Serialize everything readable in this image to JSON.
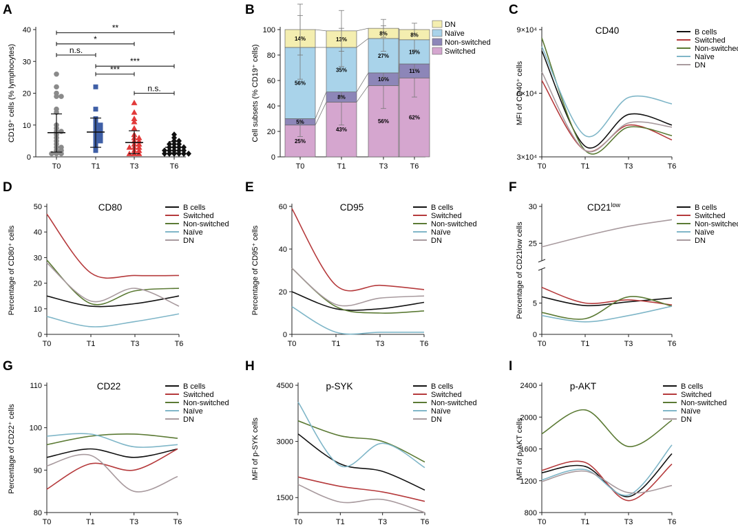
{
  "colors": {
    "B cells": "#111111",
    "Switched": "#b5393b",
    "Non-switched": "#5b7a34",
    "Naïve": "#7fb6c8",
    "DN": "#a89a9e",
    "T0": "#8a8a8a",
    "T1": "#3f5fa6",
    "T3": "#e23a3a",
    "T6": "#111111",
    "DN_bar": "#f4eeb0",
    "Naive_bar": "#a9d3ea",
    "NonSw_bar": "#8d86b8",
    "Sw_bar": "#d5a6cf"
  },
  "panels": [
    {
      "id": "A",
      "label": "A",
      "ylabel": "CD19⁺ cells (% lymphocytes)"
    },
    {
      "id": "B",
      "label": "B",
      "ylabel": "Cell subsets (% CD19⁺ cells)"
    },
    {
      "id": "C",
      "label": "C",
      "ylabel": "MFI of CD40⁺ cells"
    },
    {
      "id": "D",
      "label": "D",
      "ylabel": "Percentage of CD80⁺ cells"
    },
    {
      "id": "E",
      "label": "E",
      "ylabel": "Percentage of CD95⁺ cells"
    },
    {
      "id": "F",
      "label": "F",
      "ylabel": "Percentage of CD21low cells"
    },
    {
      "id": "G",
      "label": "G",
      "ylabel": "Percentage of CD22⁺ cells"
    },
    {
      "id": "H",
      "label": "H",
      "ylabel": "MFI of p-SYK cells"
    },
    {
      "id": "I",
      "label": "I",
      "ylabel": "MFI of p-AKT cells"
    }
  ],
  "chart_data": [
    {
      "panel": "A",
      "type": "scatter",
      "categories": [
        "T0",
        "T1",
        "T3",
        "T6"
      ],
      "ylim": [
        0,
        40
      ],
      "yticks": [
        0,
        10,
        20,
        30,
        40
      ],
      "ylabel": "CD19⁺ cells (% lymphocytes)",
      "points": [
        [
          26,
          22,
          20,
          19,
          19,
          15,
          14,
          10,
          9,
          8,
          8,
          7,
          6,
          5,
          4,
          3,
          3,
          2,
          2,
          1,
          1,
          1
        ],
        [
          22,
          15,
          12,
          11,
          10,
          10,
          9,
          9,
          8,
          8,
          7,
          7,
          6,
          6,
          5,
          5,
          4,
          3,
          2
        ],
        [
          17,
          14,
          12,
          11,
          9,
          7,
          6,
          6,
          5,
          5,
          4,
          4,
          3,
          3,
          3,
          2,
          2,
          1,
          1,
          1
        ],
        [
          7,
          6,
          5,
          5,
          4,
          4,
          4,
          3,
          3,
          3,
          3,
          2,
          2,
          2,
          2,
          2,
          1,
          1,
          1,
          1,
          1,
          1
        ]
      ],
      "mean": [
        7.6,
        7.8,
        4.5,
        3.0
      ],
      "sd_hi": [
        13.5,
        12.2,
        8.2,
        4.8
      ],
      "sd_lo": [
        1.5,
        3.0,
        1.0,
        1.3
      ],
      "comparisons": [
        {
          "from": 0,
          "to": 3,
          "y": 39,
          "label": "**"
        },
        {
          "from": 0,
          "to": 2,
          "y": 35.5,
          "label": "*"
        },
        {
          "from": 0,
          "to": 1,
          "y": 32,
          "label": "n.s."
        },
        {
          "from": 1,
          "to": 3,
          "y": 28.5,
          "label": "***"
        },
        {
          "from": 1,
          "to": 2,
          "y": 26,
          "label": "***"
        },
        {
          "from": 2,
          "to": 3,
          "y": 20,
          "label": "n.s."
        }
      ]
    },
    {
      "panel": "B",
      "type": "bar",
      "stacked": true,
      "categories": [
        "T0",
        "T1",
        "T3",
        "T6"
      ],
      "ylim": [
        0,
        100
      ],
      "yticks": [
        0,
        20,
        40,
        60,
        80,
        100
      ],
      "ylabel": "Cell subsets (% CD19⁺ cells)",
      "series": [
        {
          "name": "Switched",
          "values": [
            25,
            43,
            56,
            62
          ],
          "labels": [
            "25%",
            "43%",
            "56%",
            "62%"
          ],
          "err": [
            9,
            18,
            18,
            15
          ]
        },
        {
          "name": "Non-switched",
          "values": [
            5,
            8,
            10,
            11
          ],
          "labels": [
            "5%",
            "8%",
            "10%",
            "11%"
          ],
          "err": [
            4,
            5,
            4,
            4
          ]
        },
        {
          "name": "Naïve",
          "values": [
            56,
            35,
            27,
            19
          ],
          "labels": [
            "56%",
            "35%",
            "27%",
            "19%"
          ],
          "err": [
            25,
            15,
            10,
            8
          ]
        },
        {
          "name": "DN",
          "values": [
            14,
            13,
            8,
            8
          ],
          "labels": [
            "14%",
            "13%",
            "8%",
            "8%"
          ],
          "err": [
            20,
            16,
            7,
            5
          ]
        }
      ],
      "legend": [
        "DN",
        "Naïve",
        "Non-switched",
        "Switched"
      ]
    },
    {
      "panel": "C",
      "type": "line",
      "title": "CD40",
      "x": [
        "T0",
        "T1",
        "T3",
        "T6"
      ],
      "ylim": [
        30000,
        90000
      ],
      "yticks": [
        {
          "v": 30000,
          "t": "3×10⁴"
        },
        {
          "v": 60000,
          "t": "6×10⁴"
        },
        {
          "v": 90000,
          "t": "9×10⁴"
        }
      ],
      "ylabel": "MFI of CD40⁺ cells",
      "series": [
        {
          "name": "B cells",
          "values": [
            80000,
            35000,
            50000,
            45000
          ]
        },
        {
          "name": "Switched",
          "values": [
            66000,
            33000,
            45000,
            38000
          ]
        },
        {
          "name": "Non-switched",
          "values": [
            86000,
            33000,
            44000,
            40000
          ]
        },
        {
          "name": "Naïve",
          "values": [
            82000,
            40000,
            58000,
            55000
          ]
        },
        {
          "name": "DN",
          "values": [
            70000,
            33000,
            46000,
            44000
          ]
        }
      ]
    },
    {
      "panel": "D",
      "type": "line",
      "title": "CD80",
      "x": [
        "T0",
        "T1",
        "T3",
        "T6"
      ],
      "ylim": [
        0,
        50
      ],
      "yticks": [
        0,
        10,
        20,
        30,
        40,
        50
      ],
      "ylabel": "Percentage of CD80⁺ cells",
      "series": [
        {
          "name": "B cells",
          "values": [
            15,
            11,
            12,
            15
          ]
        },
        {
          "name": "Switched",
          "values": [
            47,
            24,
            23,
            23
          ]
        },
        {
          "name": "Non-switched",
          "values": [
            29,
            12,
            17,
            18
          ]
        },
        {
          "name": "Naïve",
          "values": [
            7,
            3,
            5,
            8
          ]
        },
        {
          "name": "DN",
          "values": [
            28,
            13,
            18,
            11
          ]
        }
      ]
    },
    {
      "panel": "E",
      "type": "line",
      "title": "CD95",
      "x": [
        "T0",
        "T1",
        "T3",
        "T6"
      ],
      "ylim": [
        0,
        60
      ],
      "yticks": [
        0,
        20,
        40,
        60
      ],
      "ylabel": "Percentage of CD95⁺ cells",
      "series": [
        {
          "name": "B cells",
          "values": [
            20,
            12,
            12,
            15
          ]
        },
        {
          "name": "Switched",
          "values": [
            59,
            23,
            23,
            21
          ]
        },
        {
          "name": "Non-switched",
          "values": [
            31,
            13,
            10,
            11
          ]
        },
        {
          "name": "Naïve",
          "values": [
            13,
            1,
            1,
            1
          ]
        },
        {
          "name": "DN",
          "values": [
            31,
            14,
            17,
            18
          ]
        }
      ]
    },
    {
      "panel": "F",
      "type": "line",
      "title": "CD21",
      "title_sup": "low",
      "x": [
        "T0",
        "T1",
        "T3",
        "T6"
      ],
      "ylabel": "Percentage of CD21low cells",
      "lower": {
        "ylim": [
          0,
          10
        ],
        "yticks": [
          0,
          5
        ]
      },
      "upper": {
        "ylim": [
          23,
          30
        ],
        "yticks": [
          25,
          30
        ]
      },
      "series": [
        {
          "name": "B cells",
          "values": [
            6,
            4.6,
            5.2,
            5.8
          ]
        },
        {
          "name": "Switched",
          "values": [
            7.5,
            5,
            5.5,
            4.7
          ]
        },
        {
          "name": "Non-switched",
          "values": [
            3.5,
            2.5,
            6,
            4.5
          ]
        },
        {
          "name": "Naïve",
          "values": [
            3,
            2,
            3,
            4.5
          ]
        },
        {
          "name": "DN",
          "values": [
            24.5,
            26,
            27.3,
            28.2
          ]
        }
      ]
    },
    {
      "panel": "G",
      "type": "line",
      "title": "CD22",
      "x": [
        "T0",
        "T1",
        "T3",
        "T6"
      ],
      "ylim": [
        80,
        110
      ],
      "yticks": [
        80,
        90,
        100,
        110
      ],
      "ylabel": "Percentage of CD22⁺ cells",
      "series": [
        {
          "name": "B cells",
          "values": [
            93,
            95,
            93,
            95
          ]
        },
        {
          "name": "Switched",
          "values": [
            85.5,
            91.5,
            90,
            95
          ]
        },
        {
          "name": "Non-switched",
          "values": [
            96,
            98,
            98.5,
            97.5
          ]
        },
        {
          "name": "Naïve",
          "values": [
            98,
            98.5,
            95.5,
            96
          ]
        },
        {
          "name": "DN",
          "values": [
            91,
            93.5,
            85,
            88.5
          ]
        }
      ]
    },
    {
      "panel": "H",
      "type": "line",
      "title": "p-SYK",
      "x": [
        "T0",
        "T1",
        "T3",
        "T6"
      ],
      "ylim": [
        1100,
        4500
      ],
      "yticks": [
        1500,
        3000,
        4500
      ],
      "ylabel": "MFI of p-SYK cells",
      "series": [
        {
          "name": "B cells",
          "values": [
            3200,
            2400,
            2200,
            1700
          ]
        },
        {
          "name": "Switched",
          "values": [
            2050,
            1800,
            1650,
            1400
          ]
        },
        {
          "name": "Non-switched",
          "values": [
            3550,
            3150,
            3000,
            2450
          ]
        },
        {
          "name": "Naïve",
          "values": [
            4050,
            2350,
            2950,
            2300
          ]
        },
        {
          "name": "DN",
          "values": [
            1850,
            1380,
            1450,
            1100
          ]
        }
      ]
    },
    {
      "panel": "I",
      "type": "line",
      "title": "p-AKT",
      "x": [
        "T0",
        "T1",
        "T3",
        "T6"
      ],
      "ylim": [
        800,
        2400
      ],
      "yticks": [
        800,
        1200,
        1600,
        2000,
        2400
      ],
      "ylabel": "MFI of p-AKT cells",
      "series": [
        {
          "name": "B cells",
          "values": [
            1300,
            1380,
            1000,
            1540
          ]
        },
        {
          "name": "Switched",
          "values": [
            1330,
            1430,
            950,
            1410
          ]
        },
        {
          "name": "Non-switched",
          "values": [
            1790,
            2090,
            1630,
            1960
          ]
        },
        {
          "name": "Naïve",
          "values": [
            1210,
            1340,
            1020,
            1650
          ]
        },
        {
          "name": "DN",
          "values": [
            1190,
            1320,
            1050,
            1140
          ]
        }
      ]
    }
  ],
  "legend_names": [
    "B cells",
    "Switched",
    "Non-switched",
    "Naïve",
    "DN"
  ]
}
